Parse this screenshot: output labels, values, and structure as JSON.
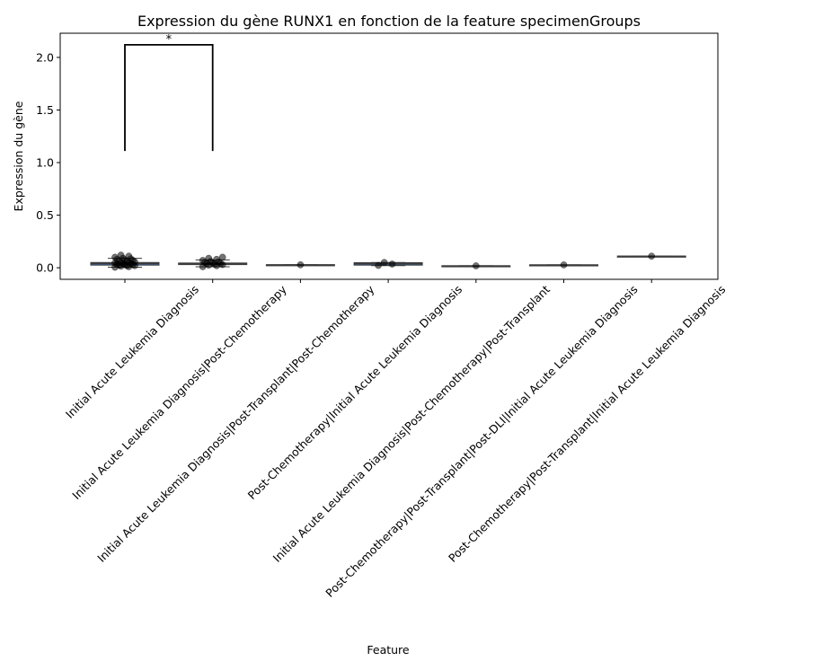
{
  "chart_data": {
    "type": "box",
    "title": "Expression du gène RUNX1 en fonction de la feature specimenGroups",
    "xlabel": "Feature",
    "ylabel": "Expression du gène",
    "ylim": [
      -0.11,
      2.23
    ],
    "yticks": [
      "0.0",
      "0.5",
      "1.0",
      "1.5",
      "2.0"
    ],
    "grid": false,
    "legend": "none",
    "categories": [
      "Initial Acute Leukemia Diagnosis",
      "Initial Acute Leukemia Diagnosis|Post-Chemotherapy",
      "Initial Acute Leukemia Diagnosis|Post-Transplant|Post-Chemotherapy",
      "Post-Chemotherapy|Initial Acute Leukemia Diagnosis",
      "Initial Acute Leukemia Diagnosis|Post-Chemotherapy|Post-Transplant",
      "Post-Chemotherapy|Post-Transplant|Post-DLI|Initial Acute Leukemia Diagnosis",
      "Post-Chemotherapy|Post-Transplant|Initial Acute Leukemia Diagnosis"
    ],
    "box_color": "#3a5f8f",
    "point_color": "#000000",
    "boxes": [
      {
        "q1": 0.025,
        "median": 0.04,
        "q3": 0.05,
        "whislo": 0.005,
        "whishi": 0.09,
        "points": [
          0.005,
          0.01,
          0.015,
          0.02,
          0.02,
          0.025,
          0.03,
          0.03,
          0.035,
          0.04,
          0.04,
          0.045,
          0.05,
          0.05,
          0.055,
          0.06,
          0.065,
          0.07,
          0.075,
          0.08,
          0.085,
          0.09,
          0.1,
          0.11,
          0.12
        ]
      },
      {
        "q1": 0.03,
        "median": 0.038,
        "q3": 0.045,
        "whislo": 0.01,
        "whishi": 0.075,
        "points": [
          0.01,
          0.02,
          0.025,
          0.03,
          0.035,
          0.04,
          0.04,
          0.045,
          0.05,
          0.055,
          0.06,
          0.07,
          0.08,
          0.09,
          0.1
        ]
      },
      {
        "q1": 0.027,
        "median": 0.028,
        "q3": 0.029,
        "whislo": 0.027,
        "whishi": 0.029,
        "points": [
          0.028
        ]
      },
      {
        "q1": 0.025,
        "median": 0.038,
        "q3": 0.048,
        "whislo": 0.02,
        "whishi": 0.05,
        "points": [
          0.022,
          0.035,
          0.05
        ]
      },
      {
        "q1": 0.017,
        "median": 0.018,
        "q3": 0.019,
        "whislo": 0.017,
        "whishi": 0.019,
        "points": [
          0.018
        ]
      },
      {
        "q1": 0.026,
        "median": 0.027,
        "q3": 0.028,
        "whislo": 0.026,
        "whishi": 0.028,
        "points": [
          0.027
        ]
      },
      {
        "q1": 0.109,
        "median": 0.11,
        "q3": 0.111,
        "whislo": 0.109,
        "whishi": 0.111,
        "points": [
          0.11
        ]
      }
    ],
    "annotations": [
      {
        "from_index": 0,
        "to_index": 1,
        "y_base": 1.11,
        "y_top": 2.12,
        "label": "*"
      }
    ]
  }
}
